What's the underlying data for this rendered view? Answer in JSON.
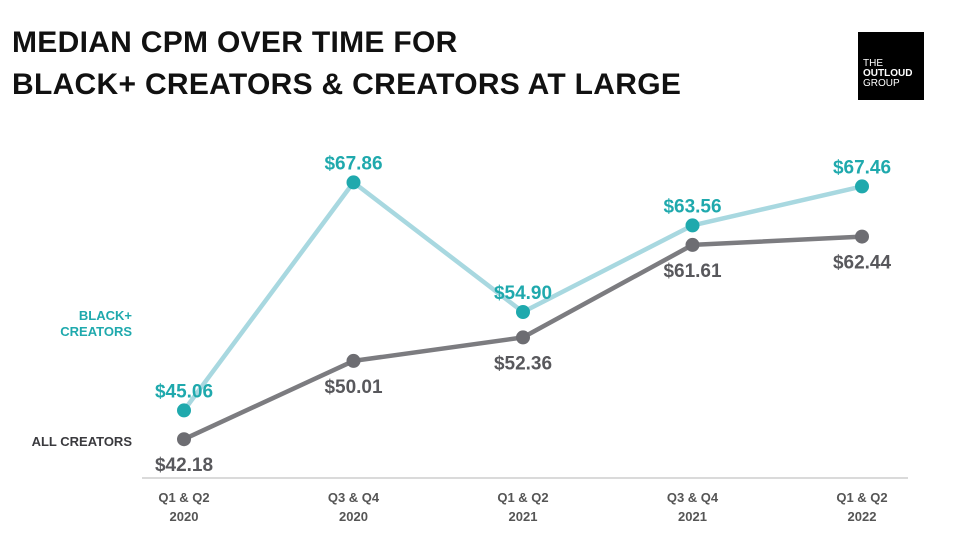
{
  "title_lines": [
    "MEDIAN CPM OVER TIME FOR",
    "BLACK+ CREATORS & CREATORS AT LARGE"
  ],
  "logo_lines": [
    "THE",
    "OUTLOUD",
    "GROUP"
  ],
  "chart_data": {
    "type": "line",
    "categories": [
      [
        "Q1 & Q2",
        "2020"
      ],
      [
        "Q3 & Q4",
        "2020"
      ],
      [
        "Q1 & Q2",
        "2021"
      ],
      [
        "Q3 & Q4",
        "2021"
      ],
      [
        "Q1 & Q2",
        "2022"
      ]
    ],
    "series": [
      {
        "name": "BLACK+ CREATORS",
        "name_lines": [
          "BLACK+",
          "CREATORS"
        ],
        "values": [
          45.06,
          67.86,
          54.9,
          63.56,
          67.46
        ],
        "labels": [
          "$45.06",
          "$67.86",
          "$54.90",
          "$63.56",
          "$67.46"
        ],
        "line_color": "#a8d8e0",
        "marker_color": "#1fa9ad",
        "label_color": "#1fa9ad",
        "label_position": [
          "above",
          "above",
          "above",
          "above",
          "above"
        ]
      },
      {
        "name": "ALL CREATORS",
        "name_lines": [
          "ALL CREATORS"
        ],
        "values": [
          42.18,
          50.01,
          52.36,
          61.61,
          62.44
        ],
        "labels": [
          "$42.18",
          "$50.01",
          "$52.36",
          "$61.61",
          "$62.44"
        ],
        "line_color": "#7c7c80",
        "marker_color": "#6d6d72",
        "label_color": "#58585c",
        "label_position": [
          "below",
          "below",
          "below",
          "below",
          "below"
        ]
      }
    ],
    "ylim": [
      40,
      70
    ],
    "grid": false,
    "legend": "left"
  }
}
